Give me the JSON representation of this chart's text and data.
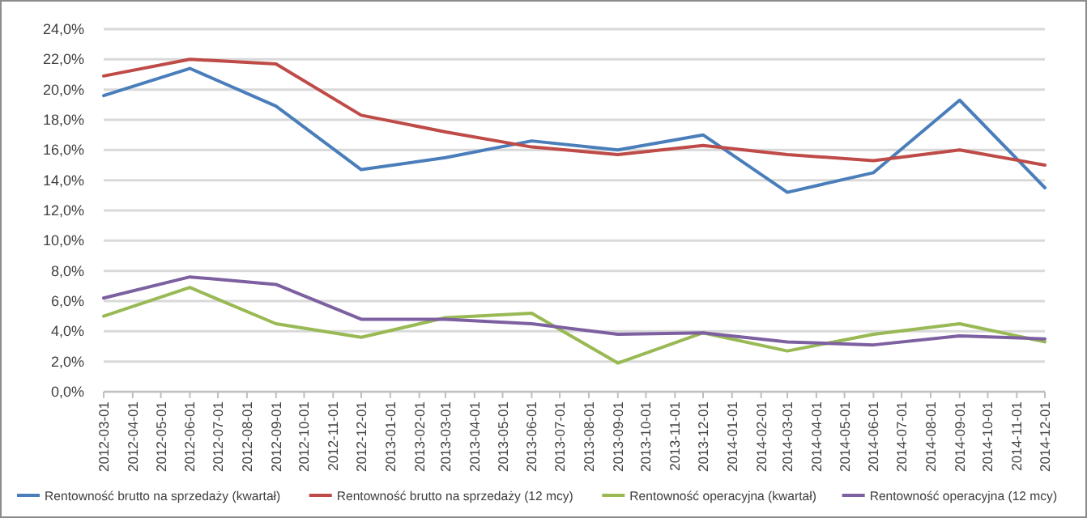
{
  "chart_data": {
    "type": "line",
    "x": [
      "2012-03-01",
      "2012-06-01",
      "2012-09-01",
      "2012-12-01",
      "2013-03-01",
      "2013-06-01",
      "2013-09-01",
      "2013-12-01",
      "2014-03-01",
      "2014-06-01",
      "2014-09-01",
      "2014-12-01"
    ],
    "xlim": [
      "2012-03-01",
      "2014-12-01"
    ],
    "xticks": [
      {
        "value": "2012-03-01",
        "label": "2012-03-01"
      },
      {
        "value": "2012-04-01",
        "label": "2012-04-01"
      },
      {
        "value": "2012-05-01",
        "label": "2012-05-01"
      },
      {
        "value": "2012-06-01",
        "label": "2012-06-01"
      },
      {
        "value": "2012-07-01",
        "label": "2012-07-01"
      },
      {
        "value": "2012-08-01",
        "label": "2012-08-01"
      },
      {
        "value": "2012-09-01",
        "label": "2012-09-01"
      },
      {
        "value": "2012-10-01",
        "label": "2012-10-01"
      },
      {
        "value": "2012-11-01",
        "label": "2012-11-01"
      },
      {
        "value": "2012-12-01",
        "label": "2012-12-01"
      },
      {
        "value": "2013-01-01",
        "label": "2013-01-01"
      },
      {
        "value": "2013-02-01",
        "label": "2013-02-01"
      },
      {
        "value": "2013-03-01",
        "label": "2013-03-01"
      },
      {
        "value": "2013-04-01",
        "label": "2013-04-01"
      },
      {
        "value": "2013-05-01",
        "label": "2013-05-01"
      },
      {
        "value": "2013-06-01",
        "label": "2013-06-01"
      },
      {
        "value": "2013-07-01",
        "label": "2013-07-01"
      },
      {
        "value": "2013-08-01",
        "label": "2013-08-01"
      },
      {
        "value": "2013-09-01",
        "label": "2013-09-01"
      },
      {
        "value": "2013-10-01",
        "label": "2013-10-01"
      },
      {
        "value": "2013-11-01",
        "label": "2013-11-01"
      },
      {
        "value": "2013-12-01",
        "label": "2013-12-01"
      },
      {
        "value": "2014-01-01",
        "label": "2014-01-01"
      },
      {
        "value": "2014-02-01",
        "label": "2014-02-01"
      },
      {
        "value": "2014-03-01",
        "label": "2014-03-01"
      },
      {
        "value": "2014-04-01",
        "label": "2014-04-01"
      },
      {
        "value": "2014-05-01",
        "label": "2014-05-01"
      },
      {
        "value": "2014-06-01",
        "label": "2014-06-01"
      },
      {
        "value": "2014-07-01",
        "label": "2014-07-01"
      },
      {
        "value": "2014-08-01",
        "label": "2014-08-01"
      },
      {
        "value": "2014-09-01",
        "label": "2014-09-01"
      },
      {
        "value": "2014-10-01",
        "label": "2014-10-01"
      },
      {
        "value": "2014-11-01",
        "label": "2014-11-01"
      },
      {
        "value": "2014-12-01",
        "label": "2014-12-01"
      }
    ],
    "ylim": [
      0,
      24
    ],
    "yticks": [
      {
        "value": 0,
        "label": "0,0%"
      },
      {
        "value": 2,
        "label": "2,0%"
      },
      {
        "value": 4,
        "label": "4,0%"
      },
      {
        "value": 6,
        "label": "6,0%"
      },
      {
        "value": 8,
        "label": "8,0%"
      },
      {
        "value": 10,
        "label": "10,0%"
      },
      {
        "value": 12,
        "label": "12,0%"
      },
      {
        "value": 14,
        "label": "14,0%"
      },
      {
        "value": 16,
        "label": "16,0%"
      },
      {
        "value": 18,
        "label": "18,0%"
      },
      {
        "value": 20,
        "label": "20,0%"
      },
      {
        "value": 22,
        "label": "22,0%"
      },
      {
        "value": 24,
        "label": "24,0%"
      }
    ],
    "grid": "y",
    "legend": "bottom",
    "series": [
      {
        "name": "Rentowność brutto na sprzedaży (kwartał)",
        "color": "#4a7ebb",
        "values": [
          19.6,
          21.4,
          18.9,
          14.7,
          15.5,
          16.6,
          16.0,
          17.0,
          13.2,
          14.5,
          19.3,
          13.5
        ]
      },
      {
        "name": "Rentowność brutto na sprzedaży (12 mcy)",
        "color": "#be4b48",
        "values": [
          20.9,
          22.0,
          21.7,
          18.3,
          17.2,
          16.2,
          15.7,
          16.3,
          15.7,
          15.3,
          16.0,
          15.0
        ]
      },
      {
        "name": "Rentowność operacyjna (kwartał)",
        "color": "#98b954",
        "values": [
          5.0,
          6.9,
          4.5,
          3.6,
          4.9,
          5.2,
          1.9,
          3.9,
          2.7,
          3.8,
          4.5,
          3.3
        ]
      },
      {
        "name": "Rentowność operacyjna (12 mcy)",
        "color": "#7d60a0",
        "values": [
          6.2,
          7.6,
          7.1,
          4.8,
          4.8,
          4.5,
          3.8,
          3.9,
          3.3,
          3.1,
          3.7,
          3.5
        ]
      }
    ]
  }
}
